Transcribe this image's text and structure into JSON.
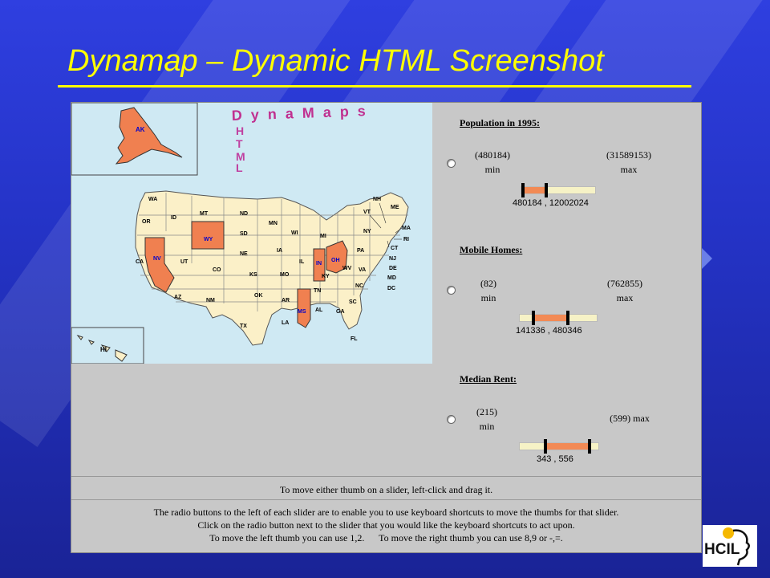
{
  "slide": {
    "title": "Dynamap – Dynamic HTML Screenshot"
  },
  "logo": {
    "name": "HCIL"
  },
  "map": {
    "inset_states": [
      "AK",
      "HI"
    ],
    "states": [
      "WA",
      "OR",
      "CA",
      "ID",
      "NV",
      "MT",
      "WY",
      "UT",
      "AZ",
      "CO",
      "NM",
      "ND",
      "SD",
      "NE",
      "KS",
      "OK",
      "TX",
      "MN",
      "IA",
      "MO",
      "AR",
      "LA",
      "WI",
      "IL",
      "MI",
      "IN",
      "OH",
      "KY",
      "TN",
      "MS",
      "AL",
      "GA",
      "FL",
      "SC",
      "NC",
      "VA",
      "WV",
      "PA",
      "NY",
      "NJ",
      "DE",
      "MD",
      "DC",
      "CT",
      "RI",
      "MA",
      "VT",
      "NH",
      "ME"
    ],
    "highlighted_states": [
      "AK",
      "NV",
      "WY",
      "IN",
      "OH",
      "MS"
    ],
    "highlight_color": "#f08050",
    "base_color": "#fbf0c8",
    "water_color": "#cfe9f3",
    "banner_lines": [
      "DynaMaps",
      "DHTML"
    ]
  },
  "sliders": [
    {
      "title": "Population in 1995:",
      "min_value": "(480184)",
      "min_label": "min",
      "max_value": "(31589153)",
      "max_label": "max",
      "range_text": "480184 , 12002024",
      "fill_start": 0.0,
      "fill_end": 0.34
    },
    {
      "title": "Mobile Homes:",
      "min_value": "(82)",
      "min_label": "min",
      "max_value": "(762855)",
      "max_label": "max",
      "range_text": "141336 , 480346",
      "fill_start": 0.18,
      "fill_end": 0.63
    },
    {
      "title": "Median Rent:",
      "min_value": "(215)",
      "min_label": "min",
      "max_value": "(599) max",
      "max_label": "",
      "range_text": "343 , 556",
      "fill_start": 0.33,
      "fill_end": 0.89
    }
  ],
  "instructions": {
    "drag": "To move either thumb on a slider, left-click and drag it.",
    "keyboard": [
      "The radio buttons to the left of each slider are to enable you to use keyboard shortcuts to move the thumbs for that slider.",
      "Click on the radio button next to the slider that you would like the keyboard shortcuts to act upon.",
      "To move the left thumb you can use 1,2.      To move the right thumb you can use 8,9 or -,=."
    ]
  },
  "colors": {
    "title": "#ffff00",
    "slider_fill": "#f28a55",
    "slider_track": "#f6f2c6",
    "background": "#2433c6"
  }
}
